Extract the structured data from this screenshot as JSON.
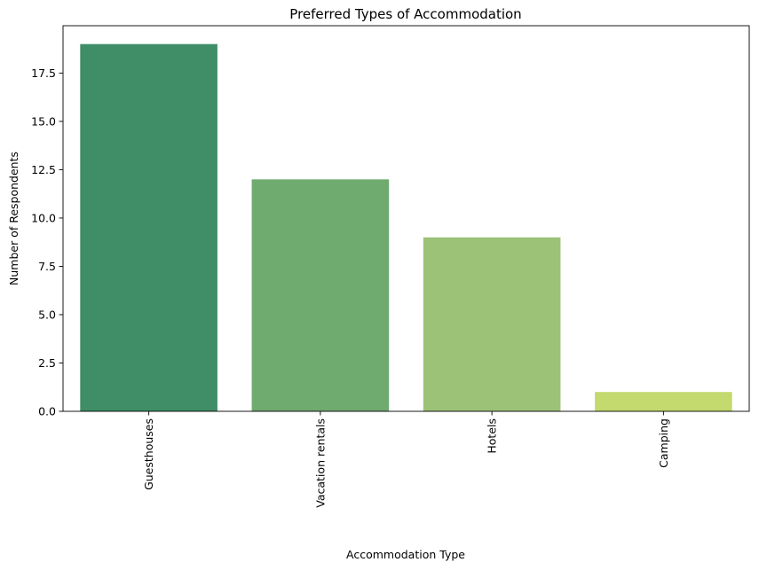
{
  "chart_data": {
    "type": "bar",
    "title": "Preferred Types of Accommodation",
    "xlabel": "Accommodation Type",
    "ylabel": "Number of Respondents",
    "categories": [
      "Guesthouses",
      "Vacation rentals",
      "Hotels",
      "Camping"
    ],
    "values": [
      19,
      12,
      9,
      1
    ],
    "colors": [
      "#3f8e67",
      "#6faa6f",
      "#9cc277",
      "#c4d96e"
    ],
    "ylim": [
      0,
      19.95
    ],
    "yticks": [
      0.0,
      2.5,
      5.0,
      7.5,
      10.0,
      12.5,
      15.0,
      17.5
    ],
    "ytick_labels": [
      "0.0",
      "2.5",
      "5.0",
      "7.5",
      "10.0",
      "12.5",
      "15.0",
      "17.5"
    ],
    "grid": false,
    "legend": false
  }
}
